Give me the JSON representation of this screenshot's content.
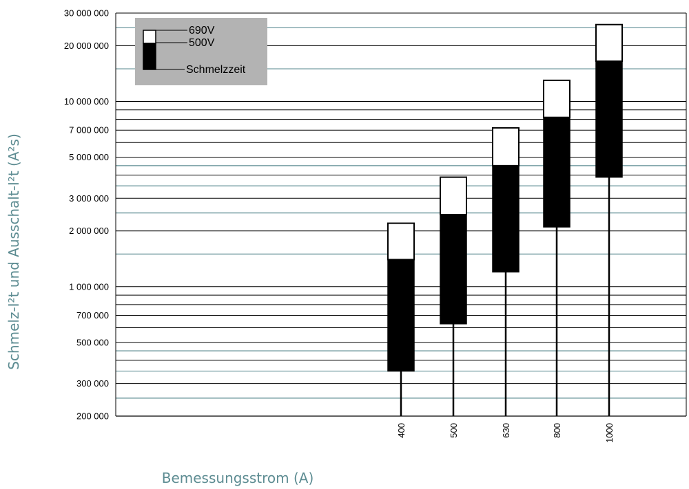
{
  "chart_data": {
    "type": "bar",
    "subtype": "floating-range-bars",
    "scale": "log",
    "ylim": [
      200000,
      30000000
    ],
    "ylabel": "Schmelz-I²t und Ausschalt-I²t (A²s)",
    "xlabel": "Bemessungsstrom (A)",
    "categories": [
      "400",
      "500",
      "630",
      "800",
      "1000"
    ],
    "y_tick_labels": [
      {
        "value": 30000000,
        "label": "30 000 000"
      },
      {
        "value": 20000000,
        "label": "20 000 000"
      },
      {
        "value": 10000000,
        "label": "10 000 000"
      },
      {
        "value": 7000000,
        "label": "7 000 000"
      },
      {
        "value": 5000000,
        "label": "5 000 000"
      },
      {
        "value": 3000000,
        "label": "3 000 000"
      },
      {
        "value": 2000000,
        "label": "2 000 000"
      },
      {
        "value": 1000000,
        "label": "1 000 000"
      },
      {
        "value": 700000,
        "label": "700 000"
      },
      {
        "value": 500000,
        "label": "500 000"
      },
      {
        "value": 300000,
        "label": "300 000"
      },
      {
        "value": 200000,
        "label": "200 000"
      }
    ],
    "black_gridlines": [
      30000000,
      20000000,
      10000000,
      9000000,
      8000000,
      7000000,
      6000000,
      5000000,
      4000000,
      3000000,
      2000000,
      1000000,
      900000,
      800000,
      700000,
      600000,
      500000,
      400000,
      300000,
      200000
    ],
    "teal_gridlines": [
      25000000,
      15000000,
      4500000,
      3500000,
      2500000,
      1500000,
      450000,
      350000,
      250000
    ],
    "series": [
      {
        "name": "Schmelzzeit",
        "low": [
          350000,
          630000,
          1200000,
          2100000,
          3900000
        ],
        "high": [
          1400000,
          2450000,
          4500000,
          8200000,
          16500000
        ]
      },
      {
        "name": "500V",
        "values": [
          1400000,
          2450000,
          4500000,
          8200000,
          16500000
        ]
      },
      {
        "name": "690V",
        "values": [
          2200000,
          3900000,
          7200000,
          13000000,
          26000000
        ]
      }
    ],
    "legend": {
      "position": "top-left",
      "entries": [
        {
          "label": "690V",
          "color": "#ffffff"
        },
        {
          "label": "500V",
          "color": "#000000"
        },
        {
          "label": "Schmelzzeit",
          "color": "#000000"
        }
      ]
    },
    "colors": {
      "legend_background": "#b3b3b3",
      "teal_gridline": "#5d8c92",
      "axis_title": "#5d8c92",
      "bar_black": "#000000",
      "bar_white": "#ffffff"
    }
  }
}
